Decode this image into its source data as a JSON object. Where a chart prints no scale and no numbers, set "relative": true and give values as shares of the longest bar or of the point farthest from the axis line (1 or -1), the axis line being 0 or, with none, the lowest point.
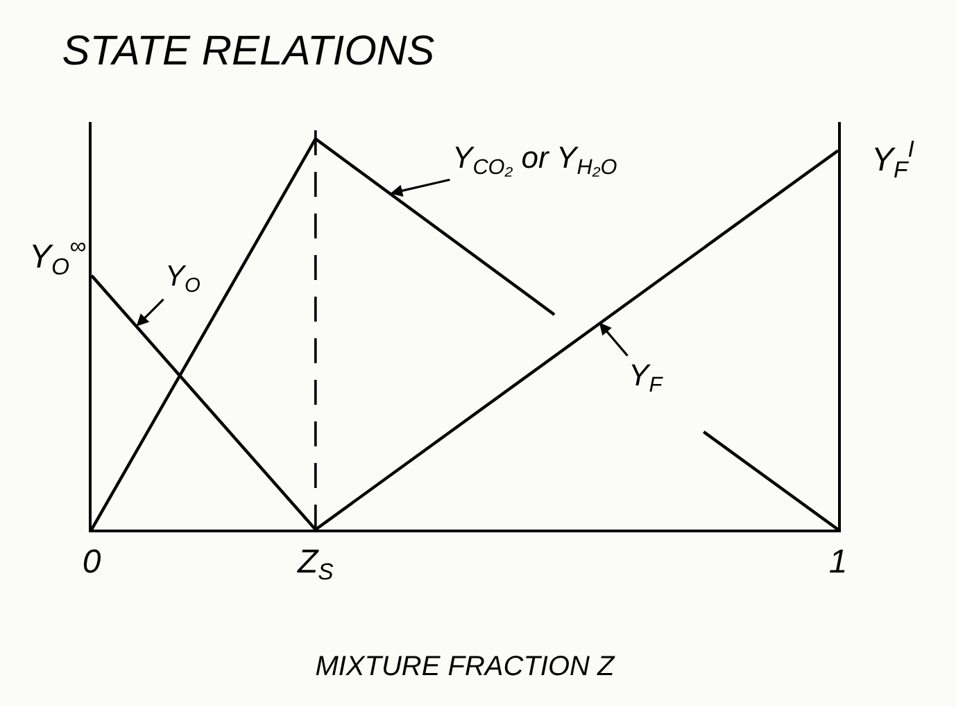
{
  "chart_data": {
    "type": "line",
    "title": "STATE RELATIONS",
    "xlabel": "MIXTURE FRACTION Z",
    "relative": true,
    "xlim": [
      0,
      1
    ],
    "xticks": [
      0,
      {
        "value": 0.3,
        "label": "Z$_{S}$"
      },
      1
    ],
    "series": [
      {
        "color": "#000000",
        "x": [
          0,
          0.3
        ],
        "values": [
          0.65,
          0
        ]
      },
      {
        "color": "#000000",
        "x": [
          0,
          0.3,
          0.62,
          0.72,
          0.82,
          1
        ],
        "values": [
          0,
          1,
          0.55,
          null,
          0.25,
          0
        ]
      },
      {
        "color": "#000000",
        "x": [
          0.3,
          1
        ],
        "values": [
          0,
          0.97
        ]
      }
    ],
    "annotations": [
      {
        "text": "Y$_{O}$$^{∞}$",
        "x": 0,
        "y": 0.65
      },
      {
        "text": "Y$_{O}$",
        "x": 0.06,
        "y": 0.52
      },
      {
        "text": "Y$_{CO₂}$ or Y$_{H₂O}$",
        "x": 0.4,
        "y": 0.86
      },
      {
        "text": "Y$_{F}$",
        "x": 0.68,
        "y": 0.53
      },
      {
        "text": "Y$_{F}$$^{I}$",
        "x": 1,
        "y": 0.97
      }
    ],
    "ref_lines": [
      {
        "axis": "x",
        "value": 0.3,
        "line_style": "dashed",
        "color": "#000000"
      }
    ],
    "legend": false,
    "grid": false,
    "marker": "none",
    "line_style": "solid",
    "tick_labels": "x"
  }
}
